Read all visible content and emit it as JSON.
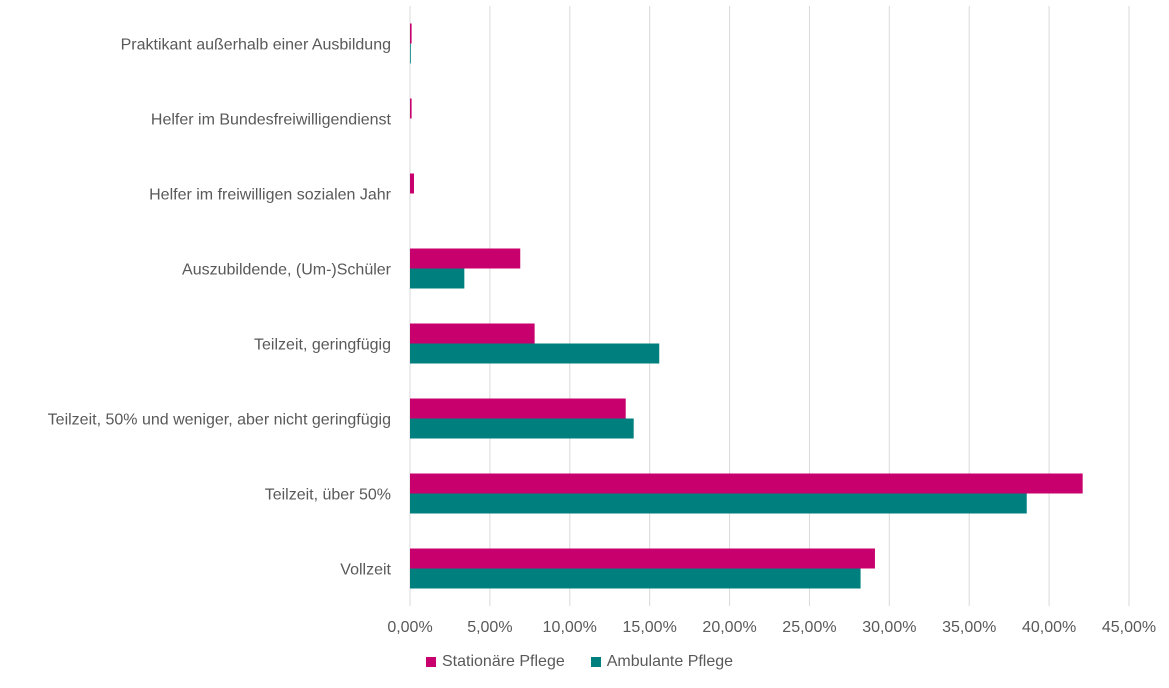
{
  "chart_data": {
    "type": "bar",
    "orientation": "horizontal",
    "categories": [
      "Praktikant außerhalb einer Ausbildung",
      "Helfer im Bundesfreiwilligendienst",
      "Helfer im freiwilligen sozialen Jahr",
      "Auszubildende, (Um-)Schüler",
      "Teilzeit, geringfügig",
      "Teilzeit, 50% und weniger, aber nicht geringfügig",
      "Teilzeit, über 50%",
      "Vollzeit"
    ],
    "series": [
      {
        "name": "Stationäre Pflege",
        "color": "#C8006E",
        "values": [
          0.1,
          0.1,
          0.25,
          6.9,
          7.8,
          13.5,
          42.1,
          29.1
        ]
      },
      {
        "name": "Ambulante Pflege",
        "color": "#007F7F",
        "values": [
          0.05,
          0,
          0,
          3.4,
          15.6,
          14.0,
          38.6,
          28.2
        ]
      }
    ],
    "xlim": [
      0,
      45
    ],
    "x_ticks": [
      "0,00%",
      "5,00%",
      "10,00%",
      "15,00%",
      "20,00%",
      "25,00%",
      "30,00%",
      "35,00%",
      "40,00%",
      "45,00%"
    ],
    "tick_step": 5,
    "grid": "vertical",
    "legend_position": "bottom",
    "gridline_color": "#D9D9D9"
  }
}
